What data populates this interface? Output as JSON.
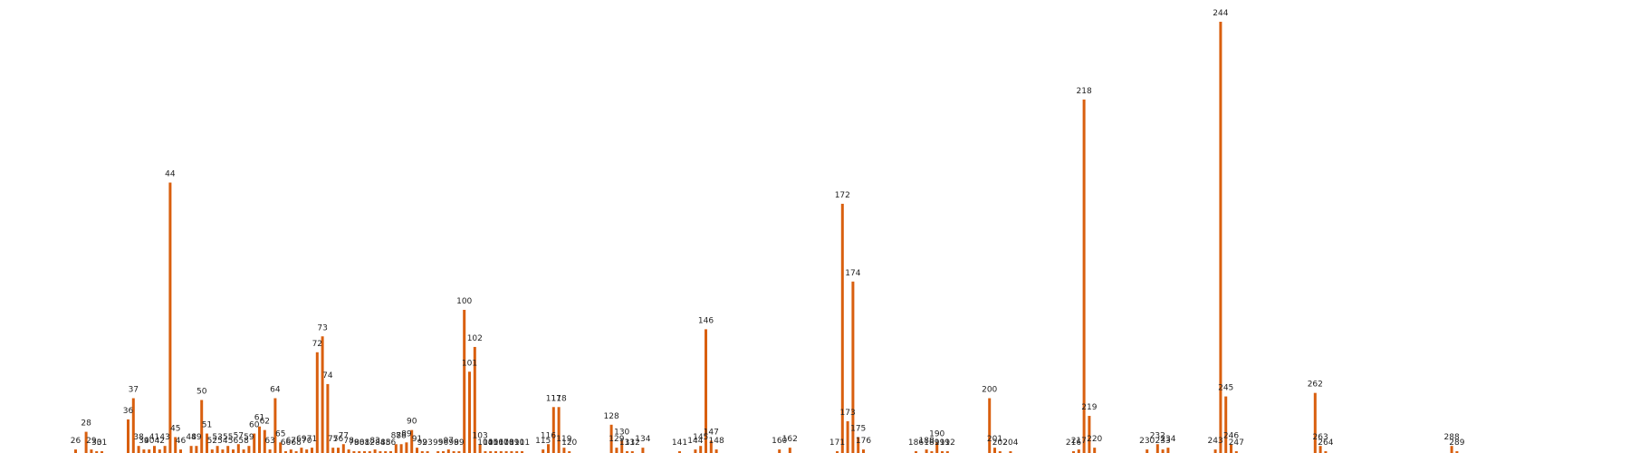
{
  "chart_data": {
    "type": "bar",
    "title": "",
    "xlabel": "",
    "ylabel": "",
    "x_axis_visible": false,
    "y_axis_visible": false,
    "grid": false,
    "legend": "none",
    "bar_color": "#d95f0e",
    "ylim": [
      0,
      244
    ],
    "points": [
      {
        "label": "26",
        "value": 2
      },
      {
        "label": "28",
        "value": 12
      },
      {
        "label": "29",
        "value": 2
      },
      {
        "label": "30",
        "value": 1
      },
      {
        "label": "31",
        "value": 1
      },
      {
        "label": "36",
        "value": 19
      },
      {
        "label": "37",
        "value": 31
      },
      {
        "label": "38",
        "value": 4
      },
      {
        "label": "39",
        "value": 2
      },
      {
        "label": "40",
        "value": 2
      },
      {
        "label": "41",
        "value": 4
      },
      {
        "label": "42",
        "value": 2
      },
      {
        "label": "43",
        "value": 4
      },
      {
        "label": "44",
        "value": 153
      },
      {
        "label": "45",
        "value": 9
      },
      {
        "label": "46",
        "value": 2
      },
      {
        "label": "48",
        "value": 4
      },
      {
        "label": "49",
        "value": 4
      },
      {
        "label": "50",
        "value": 30
      },
      {
        "label": "51",
        "value": 11
      },
      {
        "label": "52",
        "value": 2
      },
      {
        "label": "53",
        "value": 4
      },
      {
        "label": "54",
        "value": 2
      },
      {
        "label": "55",
        "value": 4
      },
      {
        "label": "56",
        "value": 2
      },
      {
        "label": "57",
        "value": 5
      },
      {
        "label": "58",
        "value": 2
      },
      {
        "label": "59",
        "value": 4
      },
      {
        "label": "60",
        "value": 11
      },
      {
        "label": "61",
        "value": 15
      },
      {
        "label": "62",
        "value": 13
      },
      {
        "label": "63",
        "value": 2
      },
      {
        "label": "64",
        "value": 31
      },
      {
        "label": "65",
        "value": 6
      },
      {
        "label": "66",
        "value": 1
      },
      {
        "label": "67",
        "value": 2
      },
      {
        "label": "68",
        "value": 1
      },
      {
        "label": "69",
        "value": 3
      },
      {
        "label": "70",
        "value": 2
      },
      {
        "label": "71",
        "value": 3
      },
      {
        "label": "72",
        "value": 57
      },
      {
        "label": "73",
        "value": 66
      },
      {
        "label": "74",
        "value": 39
      },
      {
        "label": "75",
        "value": 3
      },
      {
        "label": "76",
        "value": 3
      },
      {
        "label": "77",
        "value": 5
      },
      {
        "label": "78",
        "value": 2
      },
      {
        "label": "79",
        "value": 1
      },
      {
        "label": "80",
        "value": 1
      },
      {
        "label": "81",
        "value": 1
      },
      {
        "label": "82",
        "value": 1
      },
      {
        "label": "83",
        "value": 2
      },
      {
        "label": "84",
        "value": 1
      },
      {
        "label": "85",
        "value": 1
      },
      {
        "label": "86",
        "value": 1
      },
      {
        "label": "87",
        "value": 5
      },
      {
        "label": "88",
        "value": 5
      },
      {
        "label": "89",
        "value": 6
      },
      {
        "label": "90",
        "value": 13
      },
      {
        "label": "91",
        "value": 3
      },
      {
        "label": "92",
        "value": 1
      },
      {
        "label": "93",
        "value": 1
      },
      {
        "label": "95",
        "value": 1
      },
      {
        "label": "96",
        "value": 1
      },
      {
        "label": "97",
        "value": 2
      },
      {
        "label": "98",
        "value": 1
      },
      {
        "label": "99",
        "value": 1
      },
      {
        "label": "100",
        "value": 81
      },
      {
        "label": "101",
        "value": 46
      },
      {
        "label": "102",
        "value": 60
      },
      {
        "label": "103",
        "value": 5
      },
      {
        "label": "104",
        "value": 1
      },
      {
        "label": "105",
        "value": 1
      },
      {
        "label": "106",
        "value": 1
      },
      {
        "label": "107",
        "value": 1
      },
      {
        "label": "108",
        "value": 1
      },
      {
        "label": "109",
        "value": 1
      },
      {
        "label": "110",
        "value": 1
      },
      {
        "label": "111",
        "value": 1
      },
      {
        "label": "115",
        "value": 2
      },
      {
        "label": "116",
        "value": 5
      },
      {
        "label": "117",
        "value": 26
      },
      {
        "label": "118",
        "value": 26
      },
      {
        "label": "119",
        "value": 3
      },
      {
        "label": "120",
        "value": 1
      },
      {
        "label": "128",
        "value": 16
      },
      {
        "label": "129",
        "value": 3
      },
      {
        "label": "130",
        "value": 7
      },
      {
        "label": "131",
        "value": 1
      },
      {
        "label": "132",
        "value": 1
      },
      {
        "label": "134",
        "value": 3
      },
      {
        "label": "141",
        "value": 1
      },
      {
        "label": "144",
        "value": 2
      },
      {
        "label": "145",
        "value": 4
      },
      {
        "label": "146",
        "value": 70
      },
      {
        "label": "147",
        "value": 7
      },
      {
        "label": "148",
        "value": 2
      },
      {
        "label": "160",
        "value": 2
      },
      {
        "label": "162",
        "value": 3
      },
      {
        "label": "171",
        "value": 1
      },
      {
        "label": "172",
        "value": 141
      },
      {
        "label": "173",
        "value": 18
      },
      {
        "label": "174",
        "value": 97
      },
      {
        "label": "175",
        "value": 9
      },
      {
        "label": "176",
        "value": 2
      },
      {
        "label": "186",
        "value": 1
      },
      {
        "label": "188",
        "value": 2
      },
      {
        "label": "189",
        "value": 1
      },
      {
        "label": "190",
        "value": 6
      },
      {
        "label": "191",
        "value": 1
      },
      {
        "label": "192",
        "value": 1
      },
      {
        "label": "200",
        "value": 31
      },
      {
        "label": "201",
        "value": 3
      },
      {
        "label": "202",
        "value": 1
      },
      {
        "label": "204",
        "value": 1
      },
      {
        "label": "216",
        "value": 1
      },
      {
        "label": "217",
        "value": 2
      },
      {
        "label": "218",
        "value": 200
      },
      {
        "label": "219",
        "value": 21
      },
      {
        "label": "220",
        "value": 3
      },
      {
        "label": "230",
        "value": 2
      },
      {
        "label": "232",
        "value": 5
      },
      {
        "label": "233",
        "value": 2
      },
      {
        "label": "234",
        "value": 3
      },
      {
        "label": "243",
        "value": 2
      },
      {
        "label": "244",
        "value": 244
      },
      {
        "label": "245",
        "value": 32
      },
      {
        "label": "246",
        "value": 5
      },
      {
        "label": "247",
        "value": 1
      },
      {
        "label": "262",
        "value": 34
      },
      {
        "label": "263",
        "value": 4
      },
      {
        "label": "264",
        "value": 1
      },
      {
        "label": "288",
        "value": 4
      },
      {
        "label": "289",
        "value": 1
      }
    ]
  }
}
